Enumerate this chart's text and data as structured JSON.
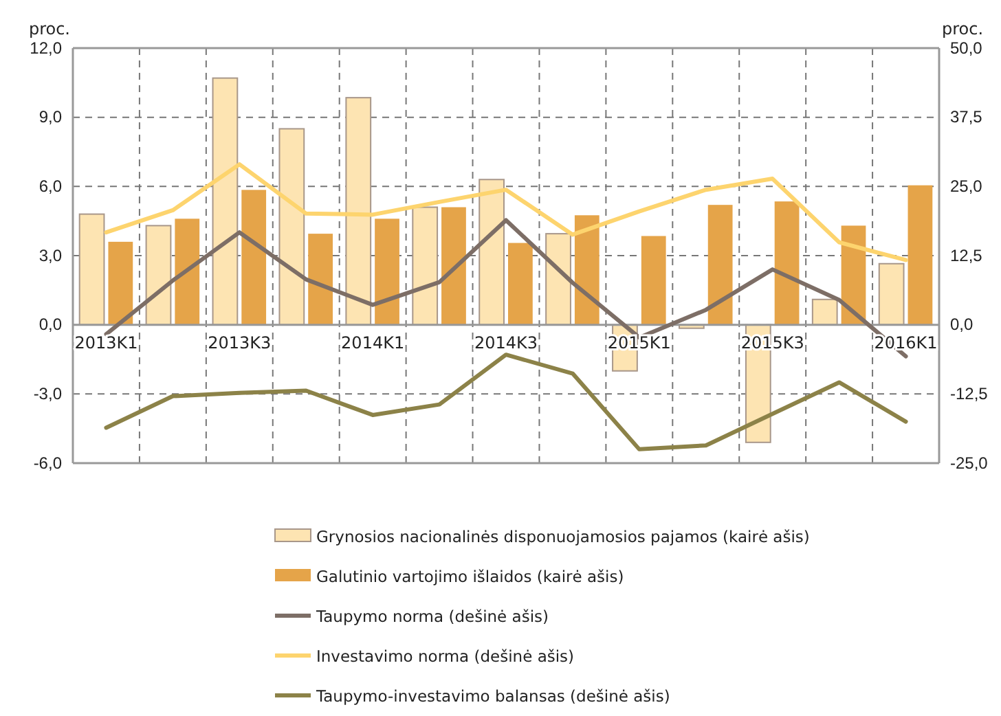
{
  "chart_data": {
    "type": "bar",
    "ylabel": "proc.",
    "y2label": "proc.",
    "categories": [
      "2013K1",
      null,
      "2013K3",
      null,
      "2014K1",
      null,
      "2014K3",
      null,
      "2015K1",
      null,
      "2015K3",
      null,
      "2016K1"
    ],
    "series": [
      {
        "name": "Grynosios nacionalinės disponuojamosios pajamos (kairė ašis)",
        "color": "#fde4b2",
        "values": [
          4.8,
          4.3,
          10.7,
          8.5,
          9.85,
          5.1,
          6.3,
          3.95,
          -2.0,
          -0.15,
          -5.1,
          1.1,
          2.65
        ]
      },
      {
        "name": "Galutinio vartojimo išlaidos (kairė ašis)",
        "color": "#e5a449",
        "values": [
          3.6,
          4.6,
          5.85,
          3.95,
          4.6,
          5.1,
          3.55,
          4.75,
          3.85,
          5.2,
          5.35,
          4.3,
          6.05
        ]
      },
      {
        "name": "Taupymo norma (dešinė ašis)",
        "type": "line",
        "axis": "y2",
        "color": "#7d6e66",
        "values": [
          -1.7,
          8.0,
          16.7,
          8.2,
          3.6,
          7.7,
          18.9,
          7.6,
          -2.3,
          2.7,
          10.0,
          4.5,
          -5.7
        ]
      },
      {
        "name": "Investavimo norma (dešinė ašis)",
        "type": "line",
        "axis": "y2",
        "color": "#fdd46e",
        "values": [
          16.7,
          20.7,
          29.0,
          20.1,
          19.9,
          22.2,
          24.4,
          16.3,
          20.5,
          24.4,
          26.4,
          14.9,
          11.7
        ]
      },
      {
        "name": "Taupymo-investavimo balansas (dešinė ašis)",
        "type": "line",
        "axis": "y2",
        "color": "#8c8248",
        "values": [
          -18.6,
          -12.9,
          -12.3,
          -11.9,
          -16.3,
          -14.4,
          -5.4,
          -8.8,
          -22.5,
          -21.8,
          -16.1,
          -10.4,
          -17.5
        ]
      }
    ],
    "ylim": [
      -6,
      12
    ],
    "yticks": [
      {
        "value": -6,
        "label": "-6,0"
      },
      {
        "value": -3,
        "label": "-3,0"
      },
      {
        "value": 0,
        "label": "0,0"
      },
      {
        "value": 3,
        "label": "3,0"
      },
      {
        "value": 6,
        "label": "6,0"
      },
      {
        "value": 9,
        "label": "9,0"
      },
      {
        "value": 12,
        "label": "12,0"
      }
    ],
    "y2lim": [
      -25,
      50
    ],
    "y2ticks": [
      {
        "value": -25,
        "label": "-25,0"
      },
      {
        "value": -12.5,
        "label": "-12,5"
      },
      {
        "value": 0,
        "label": "0,0"
      },
      {
        "value": 12.5,
        "label": "12,5"
      },
      {
        "value": 25,
        "label": "25,0"
      },
      {
        "value": 37.5,
        "label": "37,5"
      },
      {
        "value": 50,
        "label": "50,0"
      }
    ],
    "grid": true,
    "legend": "bottom",
    "line_style": "solid",
    "marker": "none"
  }
}
